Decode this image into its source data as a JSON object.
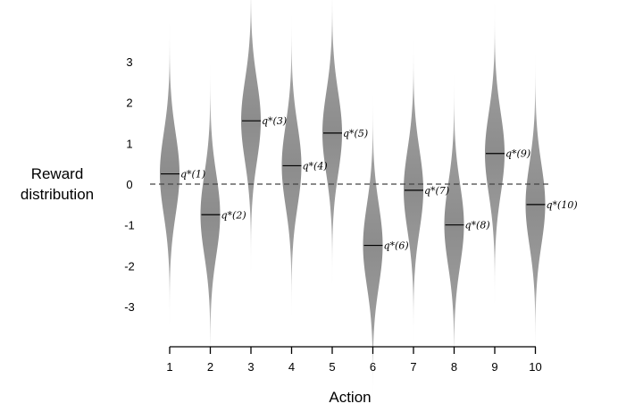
{
  "chart_data": {
    "type": "violin",
    "xlabel": "Action",
    "ylabel_lines": [
      "Reward",
      "distribution"
    ],
    "categories": [
      "1",
      "2",
      "3",
      "4",
      "5",
      "6",
      "7",
      "8",
      "9",
      "10"
    ],
    "means": [
      0.25,
      -0.75,
      1.55,
      0.45,
      1.25,
      -1.5,
      -0.15,
      -1.0,
      0.75,
      -0.5
    ],
    "std": 1,
    "yticks": [
      3,
      2,
      1,
      0,
      -1,
      -2,
      -3
    ],
    "ytick_labels": [
      "3",
      "2",
      "1",
      "0",
      "-1",
      "-2",
      "-3"
    ],
    "ylim": [
      -4,
      4
    ],
    "mean_labels": [
      "q*(1)",
      "q*(2)",
      "q*(3)",
      "q*(4)",
      "q*(5)",
      "q*(6)",
      "q*(7)",
      "q*(8)",
      "q*(9)",
      "q*(10)"
    ],
    "zero_line": true,
    "violin_color": "#8c8c8c"
  }
}
